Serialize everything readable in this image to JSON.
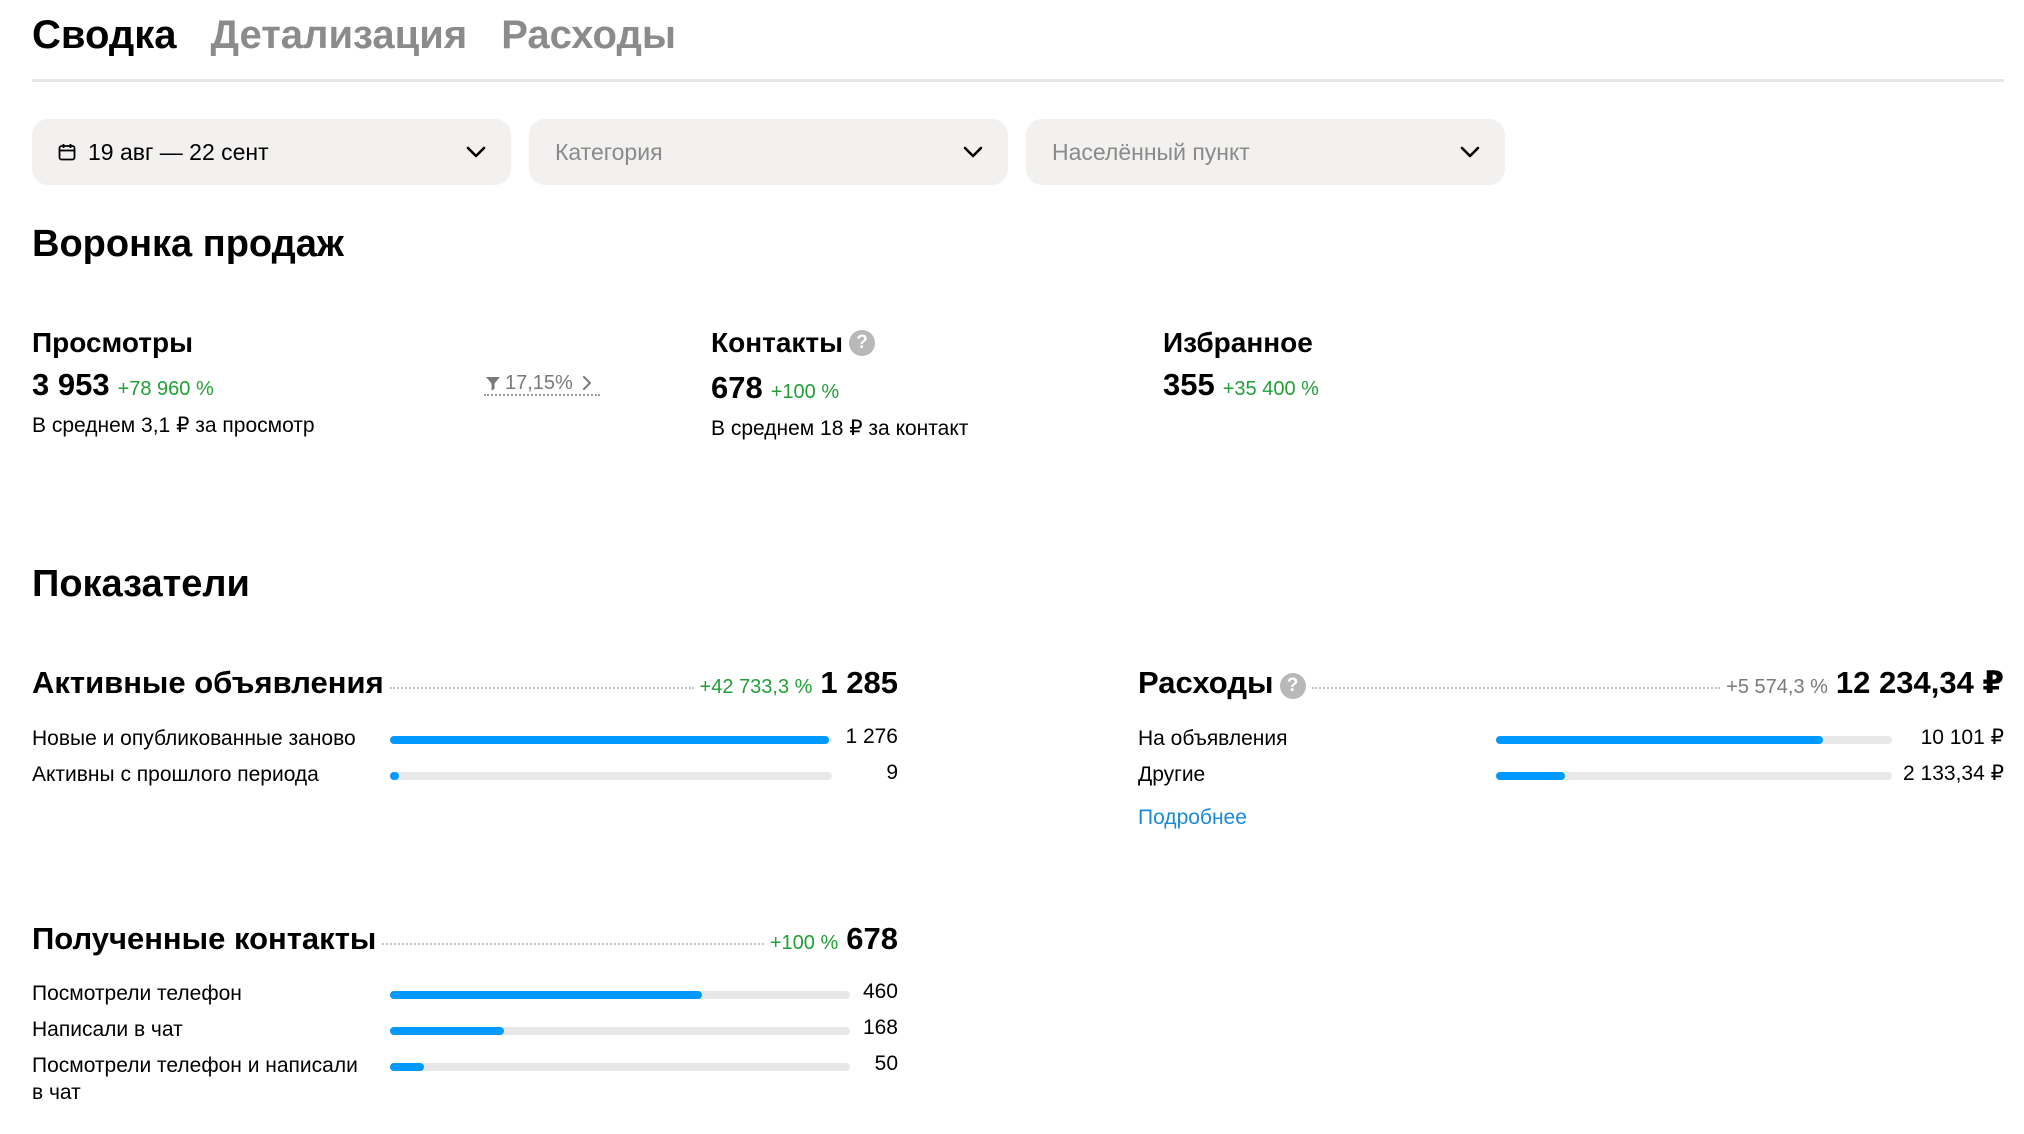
{
  "tabs": [
    "Сводка",
    "Детализация",
    "Расходы"
  ],
  "filters": {
    "period": "19 авг — 22 сент",
    "category_placeholder": "Категория",
    "city_placeholder": "Населённый пункт"
  },
  "funnel": {
    "title": "Воронка продаж",
    "views": {
      "label": "Просмотры",
      "value": "3 953",
      "delta": "+78 960 %",
      "sub": "В среднем 3,1 ₽ за просмотр"
    },
    "conversion": "17,15%",
    "contacts": {
      "label": "Контакты",
      "help": "?",
      "value": "678",
      "delta": "+100 %",
      "sub": "В среднем 18 ₽ за контакт"
    },
    "favorites": {
      "label": "Избранное",
      "value": "355",
      "delta": "+35 400 %"
    }
  },
  "indicators": {
    "title": "Показатели",
    "active_ads": {
      "label": "Активные объявления",
      "delta": "+42 733,3 %",
      "value": "1 285",
      "rows": [
        {
          "label": "Новые и опубликованные заново",
          "value": "1 276",
          "fill": 0.993
        },
        {
          "label": "Активны с прошлого периода",
          "value": "9",
          "fill": 0.02
        }
      ]
    },
    "expenses": {
      "label": "Расходы",
      "help": "?",
      "delta": "+5 574,3 %",
      "value": "12 234,34 ₽",
      "rows": [
        {
          "label": "На объявления",
          "value": "10 101 ₽",
          "fill": 0.826
        },
        {
          "label": "Другие",
          "value": "2 133,34 ₽",
          "fill": 0.174
        }
      ],
      "more_link": "Подробнее"
    },
    "contacts": {
      "label": "Полученные контакты",
      "delta": "+100 %",
      "value": "678",
      "rows": [
        {
          "label": "Посмотрели телефон",
          "value": "460",
          "fill": 0.678
        },
        {
          "label": "Написали в чат",
          "value": "168",
          "fill": 0.248
        },
        {
          "label": "Посмотрели телефон и написали в чат",
          "value": "50",
          "fill": 0.074
        }
      ]
    }
  }
}
